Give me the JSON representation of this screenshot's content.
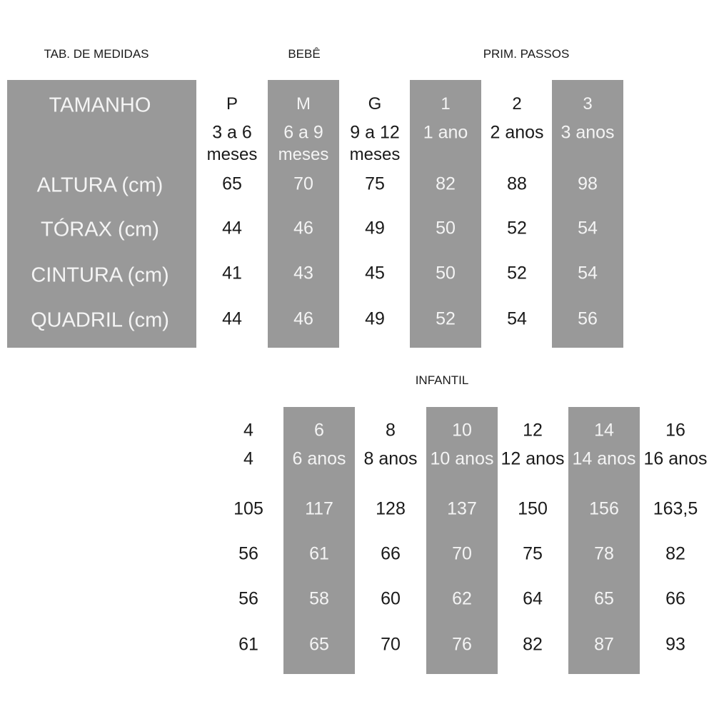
{
  "headings": {
    "title": "TAB. DE MEDIDAS",
    "bebe": "BEBÊ",
    "prim_passos": "PRIM. PASSOS",
    "infantil": "INFANTIL"
  },
  "colors": {
    "shade": "#999999",
    "text": "#1a1a1a",
    "text_on_shade": "#f4f4f4"
  },
  "row_labels": [
    "TAMANHO",
    "ALTURA (cm)",
    "TÓRAX (cm)",
    "CINTURA (cm)",
    "QUADRIL (cm)"
  ],
  "top_table": {
    "columns": [
      {
        "size": "P",
        "age1": "3 a 6",
        "age2": "meses",
        "altura": "65",
        "torax": "44",
        "cintura": "41",
        "quadril": "44",
        "shaded": false
      },
      {
        "size": "M",
        "age1": "6 a 9",
        "age2": "meses",
        "altura": "70",
        "torax": "46",
        "cintura": "43",
        "quadril": "46",
        "shaded": true
      },
      {
        "size": "G",
        "age1": "9 a 12",
        "age2": "meses",
        "altura": "75",
        "torax": "49",
        "cintura": "45",
        "quadril": "49",
        "shaded": false
      },
      {
        "size": "1",
        "age1": "1 ano",
        "age2": "",
        "altura": "82",
        "torax": "50",
        "cintura": "50",
        "quadril": "52",
        "shaded": true
      },
      {
        "size": "2",
        "age1": "2 anos",
        "age2": "",
        "altura": "88",
        "torax": "52",
        "cintura": "52",
        "quadril": "54",
        "shaded": false
      },
      {
        "size": "3",
        "age1": "3 anos",
        "age2": "",
        "altura": "98",
        "torax": "54",
        "cintura": "54",
        "quadril": "56",
        "shaded": true
      }
    ]
  },
  "bottom_table": {
    "columns": [
      {
        "size": "4",
        "age1": "4",
        "altura": "105",
        "torax": "56",
        "cintura": "56",
        "quadril": "61",
        "shaded": false
      },
      {
        "size": "6",
        "age1": "6 anos",
        "altura": "117",
        "torax": "61",
        "cintura": "58",
        "quadril": "65",
        "shaded": true
      },
      {
        "size": "8",
        "age1": "8 anos",
        "altura": "128",
        "torax": "66",
        "cintura": "60",
        "quadril": "70",
        "shaded": false
      },
      {
        "size": "10",
        "age1": "10 anos",
        "altura": "137",
        "torax": "70",
        "cintura": "62",
        "quadril": "76",
        "shaded": true
      },
      {
        "size": "12",
        "age1": "12 anos",
        "altura": "150",
        "torax": "75",
        "cintura": "64",
        "quadril": "82",
        "shaded": false
      },
      {
        "size": "14",
        "age1": "14 anos",
        "altura": "156",
        "torax": "78",
        "cintura": "65",
        "quadril": "87",
        "shaded": true
      },
      {
        "size": "16",
        "age1": "16 anos",
        "altura": "163,5",
        "torax": "82",
        "cintura": "66",
        "quadril": "93",
        "shaded": false
      }
    ]
  }
}
